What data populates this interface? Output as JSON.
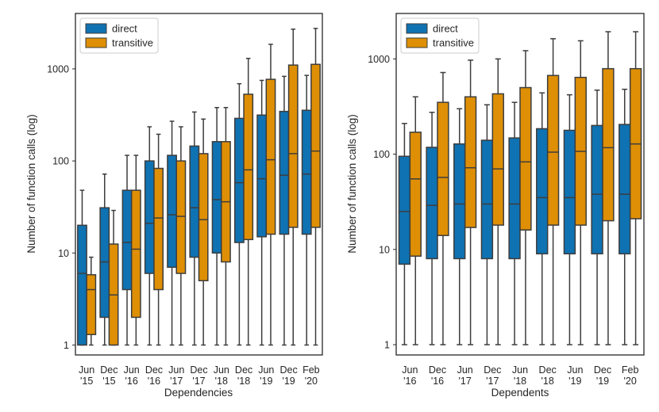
{
  "colors": {
    "direct": "#0f72b2",
    "transitive": "#de8f05",
    "line": "#3d3d3d"
  },
  "chart_data": [
    {
      "type": "box",
      "name": "dependencies",
      "xlabel": "Dependencies",
      "ylabel": "Number of function calls (log)",
      "yscale": "log",
      "ylim": [
        0.78,
        4000
      ],
      "yticks": [
        {
          "value": 1,
          "label": "1"
        },
        {
          "value": 10,
          "label": "10"
        },
        {
          "value": 100,
          "label": "100"
        },
        {
          "value": 1000,
          "label": "1000"
        }
      ],
      "categories": [
        {
          "line1": "Jun",
          "line2": "'15"
        },
        {
          "line1": "Dec",
          "line2": "'15"
        },
        {
          "line1": "Jun",
          "line2": "'16"
        },
        {
          "line1": "Dec",
          "line2": "'16"
        },
        {
          "line1": "Jun",
          "line2": "'17"
        },
        {
          "line1": "Dec",
          "line2": "'17"
        },
        {
          "line1": "Jun",
          "line2": "'18"
        },
        {
          "line1": "Dec",
          "line2": "'18"
        },
        {
          "line1": "Jun",
          "line2": "'19"
        },
        {
          "line1": "Dec",
          "line2": "'19"
        },
        {
          "line1": "Feb",
          "line2": "'20"
        }
      ],
      "series": [
        {
          "name": "direct",
          "label": "direct",
          "boxes": [
            {
              "min": 1,
              "q1": 1,
              "median": 6,
              "q3": 20,
              "max": 48
            },
            {
              "min": 1,
              "q1": 2,
              "median": 8,
              "q3": 31,
              "max": 72
            },
            {
              "min": 1,
              "q1": 4,
              "median": 13,
              "q3": 48,
              "max": 115
            },
            {
              "min": 1,
              "q1": 6,
              "median": 21,
              "q3": 100,
              "max": 235
            },
            {
              "min": 1,
              "q1": 7,
              "median": 26,
              "q3": 115,
              "max": 270
            },
            {
              "min": 1,
              "q1": 9,
              "median": 31,
              "q3": 145,
              "max": 340
            },
            {
              "min": 1,
              "q1": 10,
              "median": 38,
              "q3": 162,
              "max": 380
            },
            {
              "min": 1,
              "q1": 13,
              "median": 58,
              "q3": 290,
              "max": 690
            },
            {
              "min": 1,
              "q1": 15,
              "median": 64,
              "q3": 315,
              "max": 750
            },
            {
              "min": 1,
              "q1": 16,
              "median": 70,
              "q3": 345,
              "max": 830
            },
            {
              "min": 1,
              "q1": 16,
              "median": 72,
              "q3": 355,
              "max": 850
            }
          ]
        },
        {
          "name": "transitive",
          "label": "transitive",
          "boxes": [
            {
              "min": 1,
              "q1": 1.3,
              "median": 4,
              "q3": 5.8,
              "max": 9
            },
            {
              "min": 1,
              "q1": 1,
              "median": 3.5,
              "q3": 12.5,
              "max": 29
            },
            {
              "min": 1,
              "q1": 2,
              "median": 11,
              "q3": 48,
              "max": 115
            },
            {
              "min": 1,
              "q1": 4,
              "median": 24,
              "q3": 83,
              "max": 195
            },
            {
              "min": 1,
              "q1": 6,
              "median": 25,
              "q3": 100,
              "max": 235
            },
            {
              "min": 1,
              "q1": 5,
              "median": 23,
              "q3": 120,
              "max": 285
            },
            {
              "min": 1,
              "q1": 8,
              "median": 36,
              "q3": 162,
              "max": 380
            },
            {
              "min": 1,
              "q1": 14,
              "median": 80,
              "q3": 530,
              "max": 1300
            },
            {
              "min": 1,
              "q1": 16,
              "median": 103,
              "q3": 770,
              "max": 1850
            },
            {
              "min": 1,
              "q1": 19,
              "median": 120,
              "q3": 1100,
              "max": 2700
            },
            {
              "min": 1,
              "q1": 19,
              "median": 128,
              "q3": 1120,
              "max": 2750
            }
          ]
        }
      ],
      "legend": {
        "position": "upper-left",
        "entries": [
          "direct",
          "transitive"
        ]
      }
    },
    {
      "type": "box",
      "name": "dependents",
      "xlabel": "Dependents",
      "ylabel": "Number of function calls (log)",
      "yscale": "log",
      "ylim": [
        0.78,
        3000
      ],
      "yticks": [
        {
          "value": 1,
          "label": "1"
        },
        {
          "value": 10,
          "label": "10"
        },
        {
          "value": 100,
          "label": "100"
        },
        {
          "value": 1000,
          "label": "1000"
        }
      ],
      "categories": [
        {
          "line1": "Jun",
          "line2": "'16"
        },
        {
          "line1": "Dec",
          "line2": "'16"
        },
        {
          "line1": "Jun",
          "line2": "'17"
        },
        {
          "line1": "Dec",
          "line2": "'17"
        },
        {
          "line1": "Jun",
          "line2": "'18"
        },
        {
          "line1": "Dec",
          "line2": "'18"
        },
        {
          "line1": "Jun",
          "line2": "'19"
        },
        {
          "line1": "Dec",
          "line2": "'19"
        },
        {
          "line1": "Feb",
          "line2": "'20"
        }
      ],
      "series": [
        {
          "name": "direct",
          "label": "direct",
          "boxes": [
            {
              "min": 1,
              "q1": 7,
              "median": 25,
              "q3": 95,
              "max": 210
            },
            {
              "min": 1,
              "q1": 8,
              "median": 29,
              "q3": 118,
              "max": 275
            },
            {
              "min": 1,
              "q1": 8,
              "median": 30,
              "q3": 128,
              "max": 300
            },
            {
              "min": 1,
              "q1": 8,
              "median": 30,
              "q3": 140,
              "max": 330
            },
            {
              "min": 1,
              "q1": 8,
              "median": 30,
              "q3": 148,
              "max": 350
            },
            {
              "min": 1,
              "q1": 9,
              "median": 35,
              "q3": 185,
              "max": 440
            },
            {
              "min": 1,
              "q1": 9,
              "median": 35,
              "q3": 178,
              "max": 420
            },
            {
              "min": 1,
              "q1": 9,
              "median": 38,
              "q3": 200,
              "max": 470
            },
            {
              "min": 1,
              "q1": 9,
              "median": 38,
              "q3": 205,
              "max": 480
            }
          ]
        },
        {
          "name": "transitive",
          "label": "transitive",
          "boxes": [
            {
              "min": 1,
              "q1": 8.5,
              "median": 55,
              "q3": 170,
              "max": 400
            },
            {
              "min": 1,
              "q1": 14,
              "median": 57,
              "q3": 350,
              "max": 720
            },
            {
              "min": 1,
              "q1": 17,
              "median": 72,
              "q3": 400,
              "max": 970
            },
            {
              "min": 1,
              "q1": 18,
              "median": 70,
              "q3": 430,
              "max": 1000
            },
            {
              "min": 1,
              "q1": 16,
              "median": 83,
              "q3": 500,
              "max": 1220
            },
            {
              "min": 1,
              "q1": 18,
              "median": 105,
              "q3": 670,
              "max": 1630
            },
            {
              "min": 1,
              "q1": 18,
              "median": 107,
              "q3": 640,
              "max": 1550
            },
            {
              "min": 1,
              "q1": 20,
              "median": 117,
              "q3": 790,
              "max": 1930
            },
            {
              "min": 1,
              "q1": 21,
              "median": 128,
              "q3": 790,
              "max": 1930
            }
          ]
        }
      ],
      "legend": {
        "position": "upper-left",
        "entries": [
          "direct",
          "transitive"
        ]
      }
    }
  ]
}
